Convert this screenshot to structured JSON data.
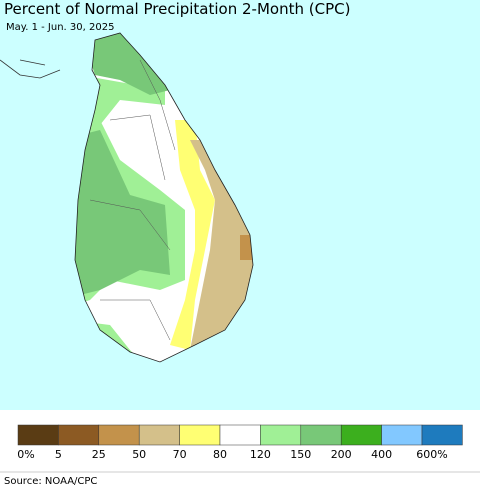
{
  "title": "Percent of Normal Precipitation 2-Month (CPC)",
  "subtitle": "May. 1 - Jun. 30, 2025",
  "legend": {
    "colors": [
      "#5a3c14",
      "#8c5a23",
      "#c3924b",
      "#d4c08a",
      "#ffff73",
      "#ffffff",
      "#a0f096",
      "#78c878",
      "#3caf1e",
      "#82c8ff",
      "#1e7bbe"
    ],
    "labels": [
      "0%",
      "5",
      "25",
      "50",
      "70",
      "80",
      "120",
      "150",
      "200",
      "400",
      "600%"
    ]
  },
  "source": "Source: NOAA/CPC"
}
